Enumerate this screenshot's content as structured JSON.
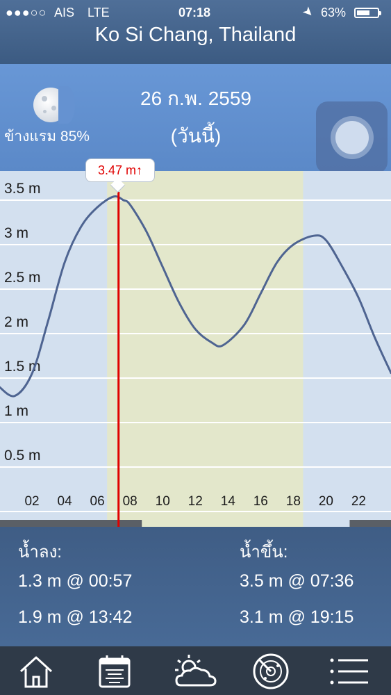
{
  "status_bar": {
    "signal": "●●●○○",
    "carrier": "AIS",
    "network": "LTE",
    "time": "07:18",
    "battery_percent": "63%",
    "battery_level": 0.63
  },
  "page": {
    "title": "Ko Si Chang, Thailand"
  },
  "header": {
    "date": "26 ก.พ. 2559",
    "today_label": "(วันนี้)",
    "moon_phase": "ข้างแรม 85%"
  },
  "chart_data": {
    "type": "line",
    "y_tick_labels": [
      "3.5 m",
      "3 m",
      "2.5 m",
      "2 m",
      "1.5 m",
      "1 m",
      "0.5 m"
    ],
    "x_tick_labels": [
      "02",
      "04",
      "06",
      "08",
      "10",
      "12",
      "14",
      "16",
      "18",
      "20",
      "22"
    ],
    "ylim": [
      0,
      3.5
    ],
    "xlim": [
      0,
      24
    ],
    "daylight_hours": [
      6.6,
      18.6
    ],
    "series": [
      {
        "x": [
          0,
          0.95,
          2,
          3,
          4,
          5,
          6,
          7,
          7.6,
          8,
          9,
          10,
          11,
          12,
          13,
          13.7,
          15,
          16,
          17,
          18,
          19.25,
          20,
          21,
          22,
          23,
          24
        ],
        "y": [
          1.4,
          1.3,
          1.55,
          2.15,
          2.8,
          3.2,
          3.42,
          3.54,
          3.5,
          3.45,
          3.15,
          2.75,
          2.35,
          2.05,
          1.9,
          1.87,
          2.1,
          2.45,
          2.8,
          3.0,
          3.1,
          3.05,
          2.75,
          2.4,
          1.95,
          1.55
        ]
      }
    ],
    "current_marker": {
      "x": 7.3,
      "label": "3.47 m↑"
    },
    "colors": {
      "line": "#4e6491",
      "marker": "#e00000",
      "daylight": "#e3e7cb",
      "background": "#d3e0ef"
    }
  },
  "tides": {
    "low_label": "น้ำลง:",
    "high_label": "น้ำขึ้น:",
    "low": [
      "1.3 m @ 00:57",
      "1.9 m @ 13:42"
    ],
    "high": [
      "3.5 m @ 07:36",
      "3.1 m @ 19:15"
    ]
  },
  "tabbar": {
    "items": [
      "home-icon",
      "calendar-icon",
      "weather-icon",
      "radar-icon",
      "menu-icon"
    ]
  }
}
